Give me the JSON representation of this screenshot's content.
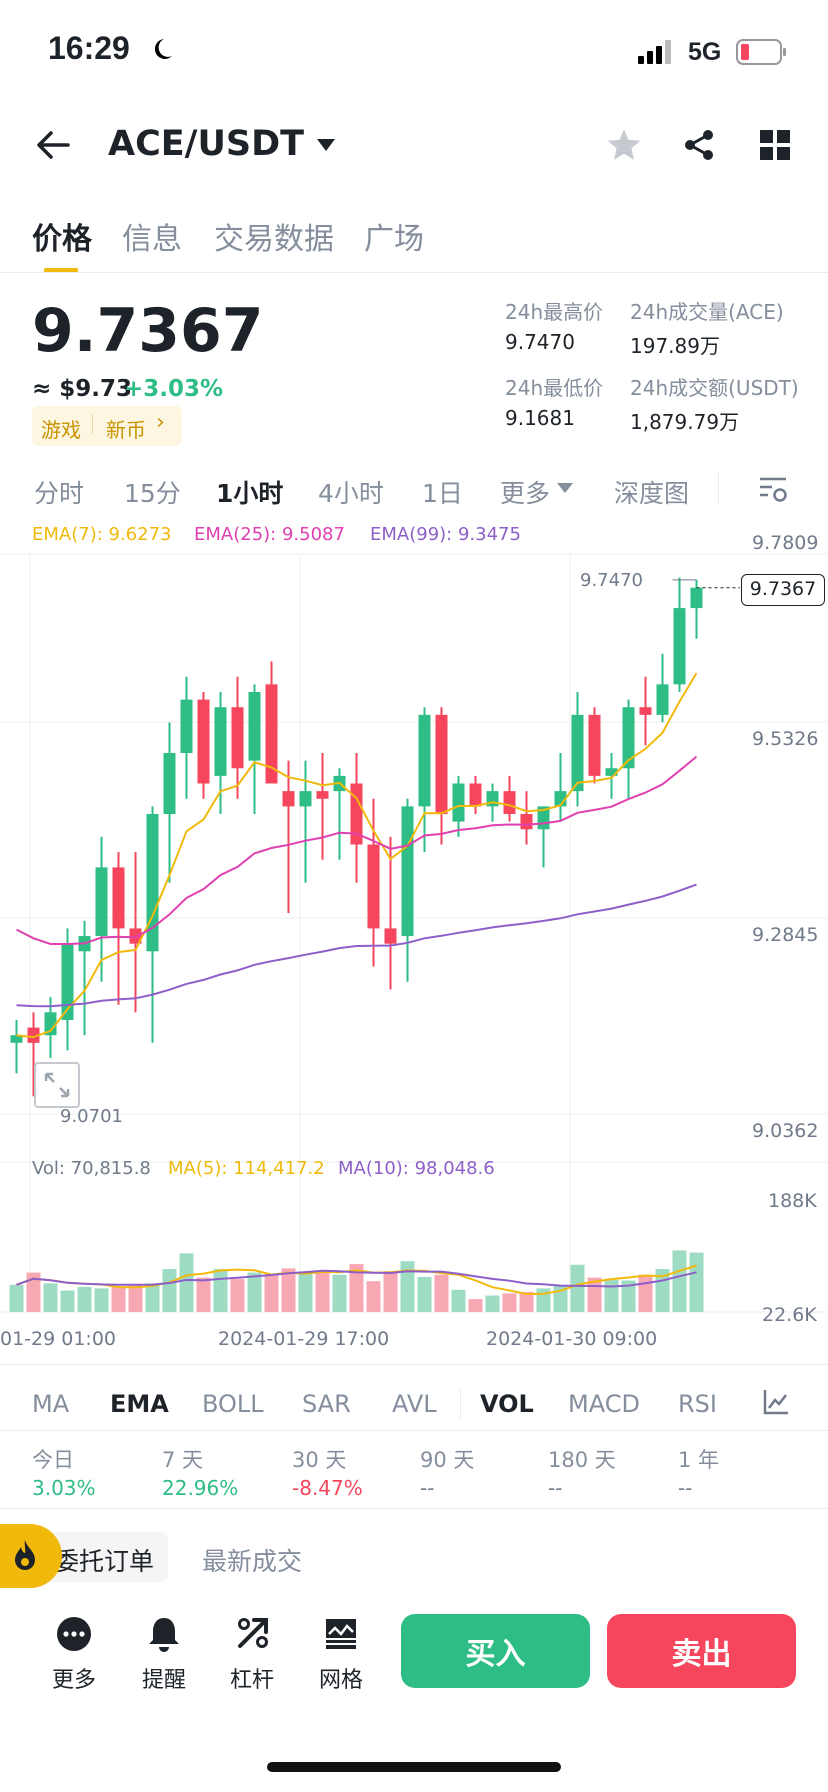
{
  "status_bar": {
    "time": "16:29",
    "network": "5G"
  },
  "header": {
    "pair": "ACE/USDT"
  },
  "tabs": [
    "价格",
    "信息",
    "交易数据",
    "广场"
  ],
  "price": {
    "last": "9.7367",
    "usd": "≈ $9.73",
    "change": "+3.03%",
    "tags": [
      "游戏",
      "新币"
    ]
  },
  "stats": {
    "high_label": "24h最高价",
    "high": "9.7470",
    "vol_base_label": "24h成交量(ACE)",
    "vol_base": "197.89万",
    "low_label": "24h最低价",
    "low": "9.1681",
    "vol_quote_label": "24h成交额(USDT)",
    "vol_quote": "1,879.79万"
  },
  "timeframes": [
    "分时",
    "15分",
    "1小时",
    "4小时",
    "1日",
    "更多",
    "深度图"
  ],
  "active_timeframe": "1小时",
  "chart": {
    "ema_labels": [
      "EMA(7): 9.6273",
      "EMA(25): 9.5087",
      "EMA(99): 9.3475"
    ],
    "y_ticks": [
      "9.7809",
      "9.5326",
      "9.2845",
      "9.0362"
    ],
    "high_marker": "9.7470",
    "low_marker": "9.0701",
    "last_price_tag": "9.7367",
    "vol_labels": [
      "Vol: 70,815.8",
      "MA(5): 114,417.2",
      "MA(10): 98,048.6"
    ],
    "vol_ticks": [
      "188K",
      "22.6K"
    ],
    "x_labels": [
      "01-29 01:00",
      "2024-01-29 17:00",
      "2024-01-30 09:00"
    ],
    "colors": {
      "up": "#2ebd85",
      "down": "#f6465d",
      "ema7": "#f0b90b",
      "ema25": "#e040b0",
      "ema99": "#8e5fc9"
    }
  },
  "chart_data": {
    "type": "candlestick",
    "title": "",
    "ylim": [
      9.0362,
      9.7809
    ],
    "candles": [
      {
        "o": 9.14,
        "h": 9.17,
        "l": 9.1,
        "c": 9.15
      },
      {
        "o": 9.16,
        "h": 9.18,
        "l": 9.07,
        "c": 9.14
      },
      {
        "o": 9.15,
        "h": 9.2,
        "l": 9.12,
        "c": 9.18
      },
      {
        "o": 9.17,
        "h": 9.29,
        "l": 9.13,
        "c": 9.27
      },
      {
        "o": 9.26,
        "h": 9.3,
        "l": 9.15,
        "c": 9.28
      },
      {
        "o": 9.28,
        "h": 9.41,
        "l": 9.22,
        "c": 9.37
      },
      {
        "o": 9.37,
        "h": 9.39,
        "l": 9.19,
        "c": 9.29
      },
      {
        "o": 9.29,
        "h": 9.39,
        "l": 9.18,
        "c": 9.27
      },
      {
        "o": 9.26,
        "h": 9.45,
        "l": 9.14,
        "c": 9.44
      },
      {
        "o": 9.44,
        "h": 9.56,
        "l": 9.35,
        "c": 9.52
      },
      {
        "o": 9.52,
        "h": 9.62,
        "l": 9.46,
        "c": 9.59
      },
      {
        "o": 9.59,
        "h": 9.6,
        "l": 9.46,
        "c": 9.48
      },
      {
        "o": 9.49,
        "h": 9.6,
        "l": 9.44,
        "c": 9.58
      },
      {
        "o": 9.58,
        "h": 9.62,
        "l": 9.46,
        "c": 9.5
      },
      {
        "o": 9.51,
        "h": 9.61,
        "l": 9.44,
        "c": 9.6
      },
      {
        "o": 9.61,
        "h": 9.64,
        "l": 9.48,
        "c": 9.48
      },
      {
        "o": 9.47,
        "h": 9.51,
        "l": 9.31,
        "c": 9.45
      },
      {
        "o": 9.45,
        "h": 9.51,
        "l": 9.35,
        "c": 9.47
      },
      {
        "o": 9.47,
        "h": 9.52,
        "l": 9.38,
        "c": 9.46
      },
      {
        "o": 9.47,
        "h": 9.5,
        "l": 9.38,
        "c": 9.49
      },
      {
        "o": 9.48,
        "h": 9.52,
        "l": 9.35,
        "c": 9.4
      },
      {
        "o": 9.4,
        "h": 9.46,
        "l": 9.24,
        "c": 9.29
      },
      {
        "o": 9.29,
        "h": 9.41,
        "l": 9.21,
        "c": 9.27
      },
      {
        "o": 9.28,
        "h": 9.46,
        "l": 9.22,
        "c": 9.45
      },
      {
        "o": 9.45,
        "h": 9.58,
        "l": 9.39,
        "c": 9.57
      },
      {
        "o": 9.57,
        "h": 9.58,
        "l": 9.4,
        "c": 9.44
      },
      {
        "o": 9.43,
        "h": 9.49,
        "l": 9.41,
        "c": 9.48
      },
      {
        "o": 9.48,
        "h": 9.49,
        "l": 9.44,
        "c": 9.45
      },
      {
        "o": 9.45,
        "h": 9.48,
        "l": 9.43,
        "c": 9.47
      },
      {
        "o": 9.47,
        "h": 9.49,
        "l": 9.43,
        "c": 9.44
      },
      {
        "o": 9.44,
        "h": 9.47,
        "l": 9.4,
        "c": 9.42
      },
      {
        "o": 9.42,
        "h": 9.45,
        "l": 9.37,
        "c": 9.45
      },
      {
        "o": 9.45,
        "h": 9.52,
        "l": 9.43,
        "c": 9.47
      },
      {
        "o": 9.47,
        "h": 9.6,
        "l": 9.45,
        "c": 9.57
      },
      {
        "o": 9.57,
        "h": 9.58,
        "l": 9.48,
        "c": 9.49
      },
      {
        "o": 9.49,
        "h": 9.52,
        "l": 9.46,
        "c": 9.5
      },
      {
        "o": 9.5,
        "h": 9.59,
        "l": 9.46,
        "c": 9.58
      },
      {
        "o": 9.58,
        "h": 9.62,
        "l": 9.53,
        "c": 9.57
      },
      {
        "o": 9.57,
        "h": 9.65,
        "l": 9.56,
        "c": 9.61
      },
      {
        "o": 9.61,
        "h": 9.75,
        "l": 9.6,
        "c": 9.71
      },
      {
        "o": 9.71,
        "h": 9.747,
        "l": 9.67,
        "c": 9.7367
      }
    ],
    "volume": [
      38,
      55,
      40,
      30,
      35,
      33,
      36,
      38,
      40,
      60,
      82,
      48,
      60,
      46,
      55,
      52,
      61,
      54,
      58,
      52,
      67,
      43,
      57,
      71,
      49,
      52,
      31,
      18,
      23,
      26,
      28,
      33,
      38,
      66,
      48,
      45,
      44,
      52,
      60,
      86,
      83
    ],
    "vol_ylim": [
      0,
      190
    ]
  },
  "indicators": [
    "MA",
    "EMA",
    "BOLL",
    "SAR",
    "AVL",
    "VOL",
    "MACD",
    "RSI"
  ],
  "perf": [
    {
      "label": "今日",
      "value": "3.03%"
    },
    {
      "label": "7 天",
      "value": "22.96%"
    },
    {
      "label": "30 天",
      "value": "-8.47%"
    },
    {
      "label": "90 天",
      "value": "--"
    },
    {
      "label": "180 天",
      "value": "--"
    },
    {
      "label": "1 年",
      "value": "--"
    }
  ],
  "order_tabs": [
    "委托订单",
    "最新成交"
  ],
  "bottom": {
    "more": "更多",
    "alert": "提醒",
    "lever": "杠杆",
    "grid": "网格",
    "buy": "买入",
    "sell": "卖出"
  }
}
